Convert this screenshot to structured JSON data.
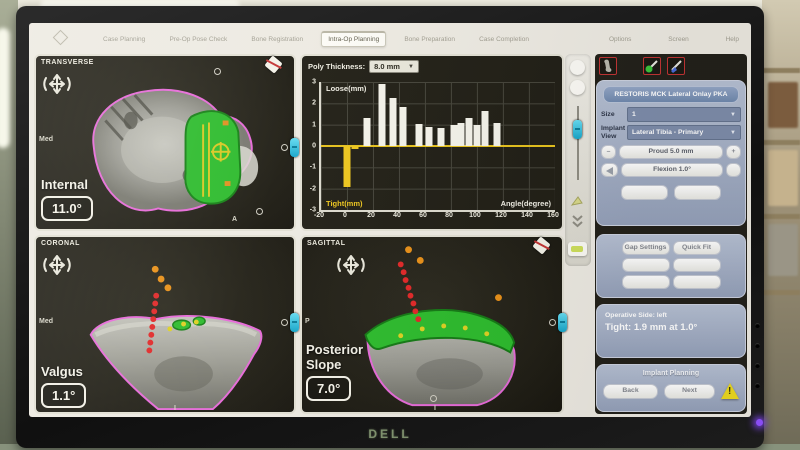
{
  "monitor": {
    "brand": "DELL"
  },
  "tabs": [
    {
      "label": "Case Planning",
      "active": false
    },
    {
      "label": "Pre-Op Pose Check",
      "active": false
    },
    {
      "label": "Bone Registration",
      "active": false
    },
    {
      "label": "Intra-Op Planning",
      "active": true
    },
    {
      "label": "Bone Preparation",
      "active": false
    },
    {
      "label": "Case Completion",
      "active": false
    }
  ],
  "menu": [
    {
      "label": "Options"
    },
    {
      "label": "Screen"
    },
    {
      "label": "Help"
    }
  ],
  "viewports": {
    "transverse": {
      "name": "TRANSVERSE",
      "side": "Med",
      "marker": "A",
      "measure_label": "Internal",
      "value": "11.0°"
    },
    "coronal": {
      "name": "CORONAL",
      "side": "Med",
      "marker": "I",
      "measure_label": "Valgus",
      "value": "1.1°"
    },
    "sagittal": {
      "name": "SAGITTAL",
      "side": "P",
      "marker": "I",
      "measure_line1": "Posterior",
      "measure_line2": "Slope",
      "value": "7.0°"
    }
  },
  "chart_data": {
    "type": "bar",
    "control_label": "Poly Thickness:",
    "control_value": "8.0 mm",
    "ylabel_positive": "Loose(mm)",
    "ylabel_negative": "Tight(mm)",
    "xlabel": "Angle(degree)",
    "xlim": [
      -20,
      160
    ],
    "ylim": [
      -3,
      3
    ],
    "xticks": [
      -20,
      0,
      20,
      40,
      60,
      80,
      100,
      120,
      140,
      160
    ],
    "yticks": [
      3,
      2,
      1,
      0,
      -1,
      -2,
      -3
    ],
    "bar_colors": {
      "loose": "#f4f3ea",
      "tight": "#eec61e"
    },
    "bars": [
      {
        "angle": 0,
        "gap_mm": -1.9
      },
      {
        "angle": 6,
        "gap_mm": -0.15
      },
      {
        "angle": 15,
        "gap_mm": 1.3
      },
      {
        "angle": 27,
        "gap_mm": 2.9
      },
      {
        "angle": 35,
        "gap_mm": 2.25
      },
      {
        "angle": 43,
        "gap_mm": 1.85
      },
      {
        "angle": 55,
        "gap_mm": 1.05
      },
      {
        "angle": 63,
        "gap_mm": 0.9
      },
      {
        "angle": 72,
        "gap_mm": 0.85
      },
      {
        "angle": 82,
        "gap_mm": 1.0
      },
      {
        "angle": 88,
        "gap_mm": 1.1
      },
      {
        "angle": 94,
        "gap_mm": 1.3
      },
      {
        "angle": 100,
        "gap_mm": 1.0
      },
      {
        "angle": 106,
        "gap_mm": 1.65
      },
      {
        "angle": 115,
        "gap_mm": 1.1
      }
    ]
  },
  "side_panel": {
    "implant_title": "RESTORIS MCK Lateral Onlay PKA",
    "size_label": "Size",
    "size_value": "1",
    "implant_view_label": "Implant View",
    "implant_view_value": "Lateral Tibia - Primary",
    "minus": "–",
    "plus": "+",
    "proud": "Proud 5.0 mm",
    "flexion": "Flexion 1.0°",
    "grid_buttons": [
      "Gap Settings",
      "Quick Fit",
      "",
      "",
      "",
      ""
    ],
    "operative_side": "Operative Side: left",
    "tight_summary": "Tight: 1.9 mm at 1.0°",
    "footer_title": "Implant Planning",
    "back": "Back",
    "next": "Next"
  },
  "colors": {
    "accent_cyan": "#35c8e8",
    "bone_outline_magenta": "#e66ad8",
    "implant_green": "#2dbb2d",
    "chart_tight_yellow": "#eec61e",
    "warning_yellow": "#ecd91f"
  }
}
